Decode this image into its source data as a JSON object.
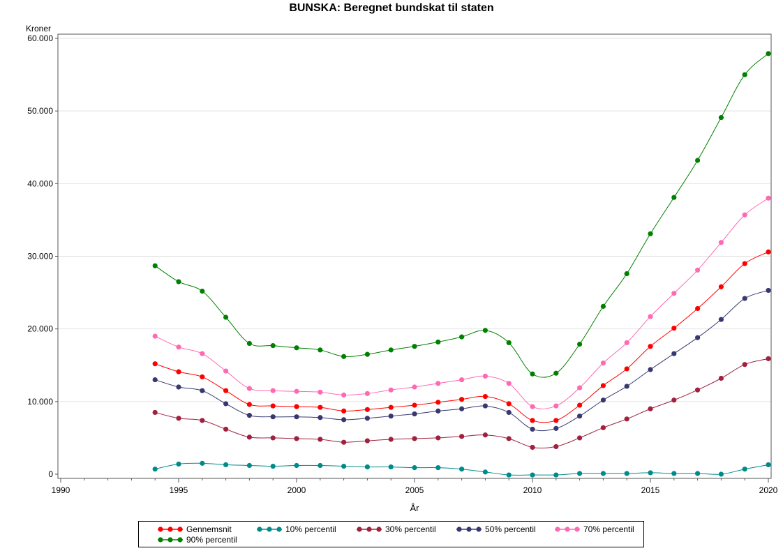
{
  "chart_data": {
    "type": "line",
    "title": "BUNSKA: Beregnet bundskat til staten",
    "xlabel": "År",
    "ylabel": "Kroner",
    "xlim": [
      1990,
      2020
    ],
    "ylim": [
      0,
      60000
    ],
    "x_ticks": [
      1990,
      1995,
      2000,
      2005,
      2010,
      2015,
      2020
    ],
    "y_ticks": [
      0,
      10000,
      20000,
      30000,
      40000,
      50000,
      60000
    ],
    "y_tick_labels": [
      "0",
      "10.000",
      "20.000",
      "30.000",
      "40.000",
      "50.000",
      "60.000"
    ],
    "grid": "horizontal",
    "legend_position": "bottom",
    "x": [
      1994,
      1995,
      1996,
      1997,
      1998,
      1999,
      2000,
      2001,
      2002,
      2003,
      2004,
      2005,
      2006,
      2007,
      2008,
      2009,
      2010,
      2011,
      2012,
      2013,
      2014,
      2015,
      2016,
      2017,
      2018,
      2019,
      2020
    ],
    "series": [
      {
        "name": "Gennemsnit",
        "color": "#ff0000",
        "values": [
          15200,
          14100,
          13400,
          11500,
          9600,
          9400,
          9300,
          9200,
          8700,
          8900,
          9200,
          9500,
          9900,
          10300,
          10700,
          9700,
          7400,
          7400,
          9500,
          12200,
          14500,
          17600,
          20100,
          22800,
          25800,
          29000,
          30600
        ]
      },
      {
        "name": "10% percentil",
        "color": "#008b8b",
        "values": [
          700,
          1400,
          1500,
          1300,
          1200,
          1100,
          1200,
          1200,
          1100,
          1000,
          1000,
          900,
          900,
          700,
          300,
          -100,
          -100,
          -100,
          100,
          100,
          100,
          200,
          100,
          100,
          0,
          700,
          1300
        ]
      },
      {
        "name": "30% percentil",
        "color": "#a0203e",
        "values": [
          8500,
          7700,
          7400,
          6200,
          5100,
          5000,
          4900,
          4800,
          4400,
          4600,
          4800,
          4900,
          5000,
          5200,
          5400,
          4900,
          3700,
          3800,
          5000,
          6400,
          7600,
          9000,
          10200,
          11600,
          13200,
          15100,
          15900
        ]
      },
      {
        "name": "50% percentil",
        "color": "#383870",
        "values": [
          13000,
          12000,
          11500,
          9700,
          8100,
          7900,
          7900,
          7800,
          7500,
          7700,
          8000,
          8300,
          8700,
          9000,
          9400,
          8500,
          6200,
          6300,
          8000,
          10200,
          12100,
          14400,
          16600,
          18800,
          21300,
          24200,
          25300
        ]
      },
      {
        "name": "70% percentil",
        "color": "#ff69b4",
        "values": [
          19000,
          17500,
          16600,
          14200,
          11800,
          11500,
          11400,
          11300,
          10900,
          11100,
          11600,
          12000,
          12500,
          13000,
          13500,
          12500,
          9300,
          9400,
          11900,
          15300,
          18100,
          21700,
          24900,
          28100,
          31900,
          35700,
          38000
        ]
      },
      {
        "name": "90% percentil",
        "color": "#008000",
        "values": [
          28700,
          26500,
          25200,
          21600,
          18000,
          17700,
          17400,
          17100,
          16200,
          16500,
          17100,
          17600,
          18200,
          18900,
          19800,
          18100,
          13800,
          13900,
          17900,
          23100,
          27600,
          33100,
          38100,
          43200,
          49100,
          55000,
          57900
        ]
      }
    ]
  }
}
